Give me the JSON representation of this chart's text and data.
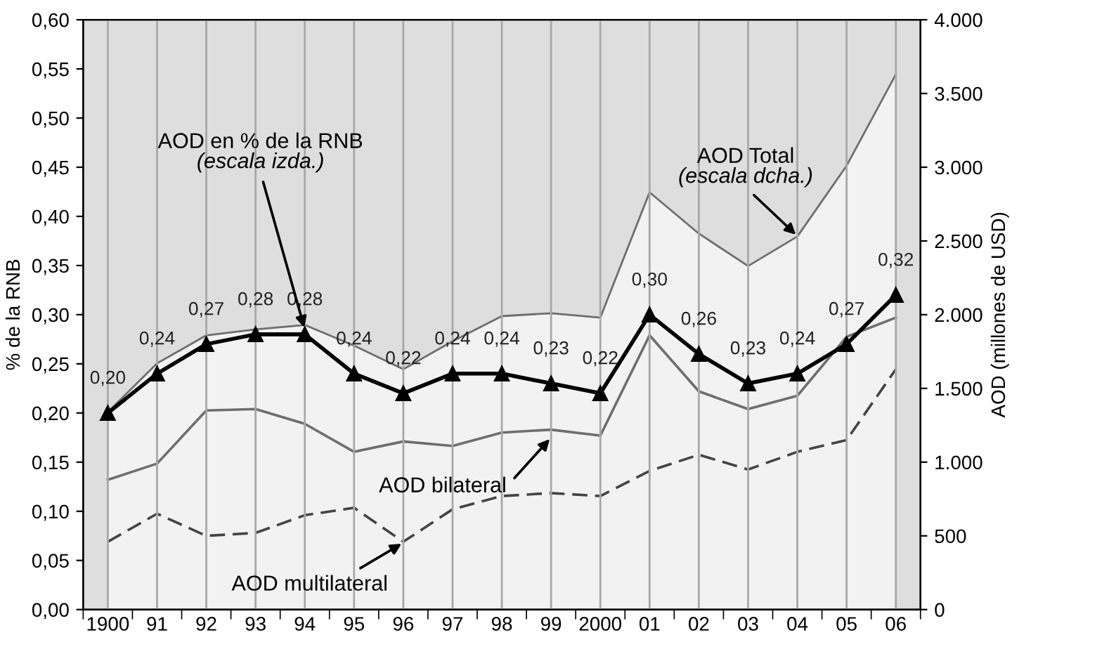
{
  "chart_data": {
    "type": "line",
    "ylabel": "% de la RNB",
    "y2label": "AOD (millones de USD)",
    "categories": [
      "1900",
      "91",
      "92",
      "93",
      "94",
      "95",
      "96",
      "97",
      "98",
      "99",
      "2000",
      "01",
      "02",
      "03",
      "04",
      "05",
      "06"
    ],
    "series": [
      {
        "type": "area",
        "axis": "y2",
        "color": "#f2f2f2",
        "values": [
          1340,
          1670,
          1860,
          1900,
          1930,
          1790,
          1630,
          1820,
          1990,
          2010,
          1980,
          2830,
          2550,
          2330,
          2530,
          3010,
          3630
        ]
      },
      {
        "axis": "y2",
        "color": "#6e6e6e",
        "values": [
          880,
          990,
          1350,
          1360,
          1260,
          1070,
          1140,
          1110,
          1200,
          1220,
          1180,
          1860,
          1480,
          1360,
          1450,
          1850,
          1980
        ]
      },
      {
        "axis": "y2",
        "color": "#444444",
        "line_style": "dashed",
        "values": [
          460,
          650,
          500,
          520,
          640,
          690,
          460,
          680,
          770,
          790,
          770,
          940,
          1050,
          950,
          1070,
          1150,
          1630
        ]
      },
      {
        "color": "#000000",
        "marker": "triangle",
        "values": [
          0.2,
          0.24,
          0.27,
          0.28,
          0.28,
          0.24,
          0.22,
          0.24,
          0.24,
          0.23,
          0.22,
          0.3,
          0.26,
          0.23,
          0.24,
          0.27,
          0.32
        ],
        "value_labels": [
          "0,20",
          "0,24",
          "0,27",
          "0,28",
          "0,28",
          "0,24",
          "0,22",
          "0,24",
          "0,24",
          "0,23",
          "0,22",
          "0,30",
          "0,26",
          "0,23",
          "0,24",
          "0,27",
          "0,32"
        ]
      }
    ],
    "ylim": [
      0,
      0.6
    ],
    "yticks": [
      {
        "value": 0,
        "label": "0,00"
      },
      {
        "value": 0.05,
        "label": "0,05"
      },
      {
        "value": 0.1,
        "label": "0,10"
      },
      {
        "value": 0.15,
        "label": "0,15"
      },
      {
        "value": 0.2,
        "label": "0,20"
      },
      {
        "value": 0.25,
        "label": "0,25"
      },
      {
        "value": 0.3,
        "label": "0,30"
      },
      {
        "value": 0.35,
        "label": "0,35"
      },
      {
        "value": 0.4,
        "label": "0,40"
      },
      {
        "value": 0.45,
        "label": "0,45"
      },
      {
        "value": 0.5,
        "label": "0,50"
      },
      {
        "value": 0.55,
        "label": "0,55"
      },
      {
        "value": 0.6,
        "label": "0,60"
      }
    ],
    "y2lim": [
      0,
      4000
    ],
    "y2ticks": [
      0,
      500,
      {
        "value": 1000,
        "label": "1.000"
      },
      {
        "value": 1500,
        "label": "1.500"
      },
      {
        "value": 2000,
        "label": "2.000"
      },
      {
        "value": 2500,
        "label": "2.500"
      },
      {
        "value": 3000,
        "label": "3.000"
      },
      {
        "value": 3500,
        "label": "3.500"
      },
      {
        "value": 4000,
        "label": "4.000"
      }
    ],
    "grid": "x",
    "legend": false,
    "annotations": [
      {
        "text": "AOD en % de la RNB\n(escala izda.)",
        "x": "94",
        "y": 0.285
      },
      {
        "text": "AOD Total\n(escala dcha.)",
        "x": "04",
        "y": 0.38
      },
      {
        "text": "AOD bilateral",
        "x": "99",
        "y": 0.175
      },
      {
        "text": "AOD multilateral",
        "x": "96",
        "y": 0.068
      }
    ]
  }
}
